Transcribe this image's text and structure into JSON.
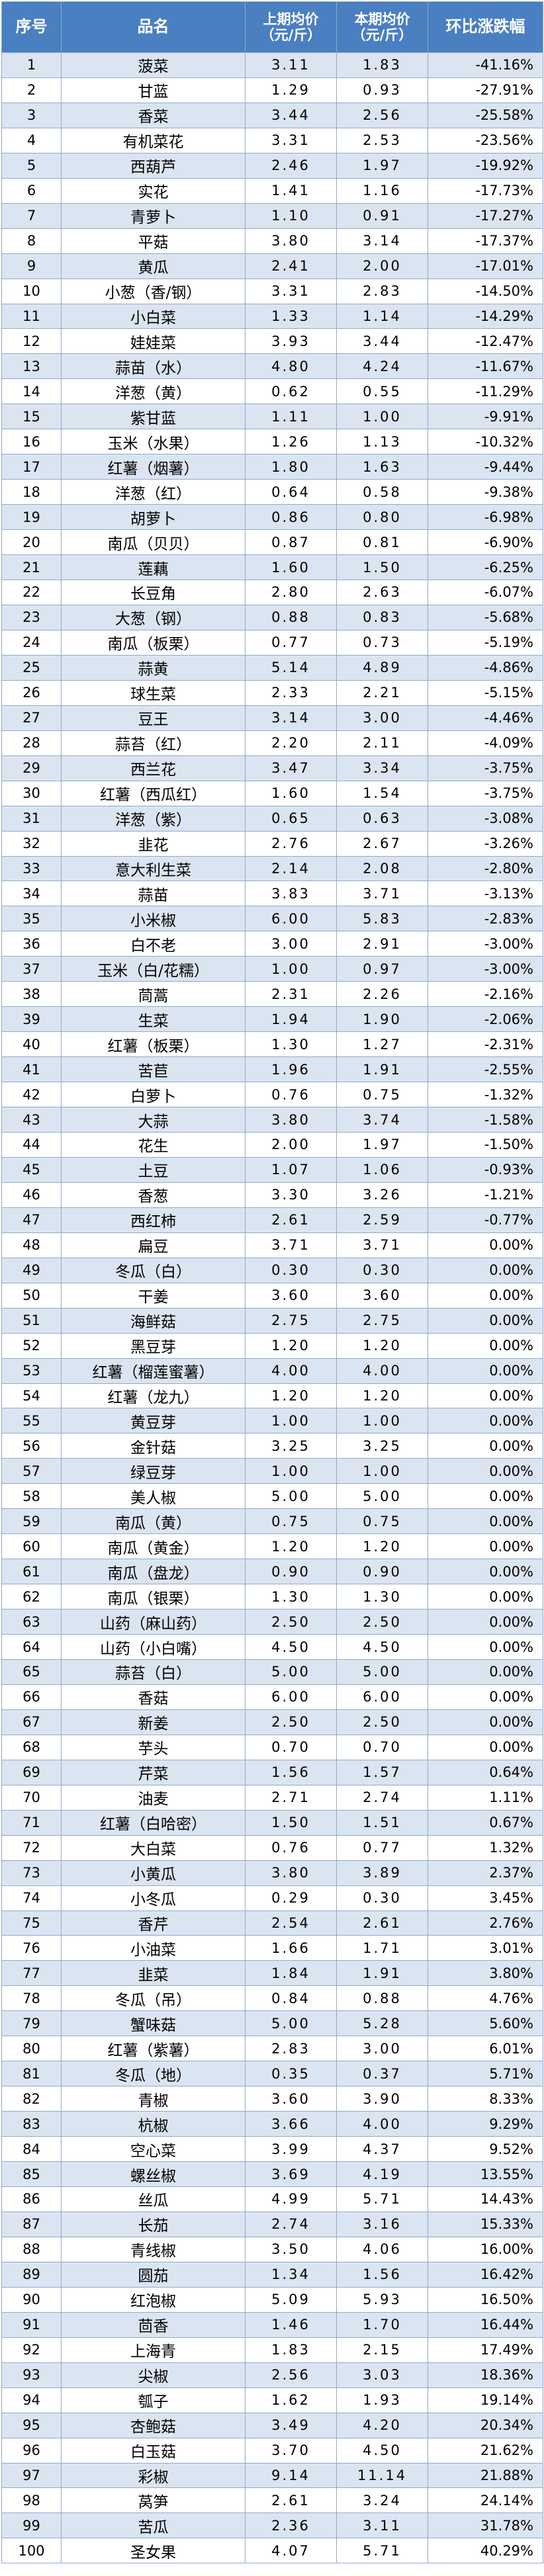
{
  "headers": {
    "no": "序号",
    "name": "品名",
    "prev_line1": "上期均价",
    "prev_line2": "（元/斤）",
    "cur_line1": "本期均价",
    "cur_line2": "（元/斤）",
    "change": "环比涨跌幅"
  },
  "rows": [
    {
      "no": "1",
      "name": "菠菜",
      "prev": "3.11",
      "cur": "1.83",
      "change": "-41.16%"
    },
    {
      "no": "2",
      "name": "甘蓝",
      "prev": "1.29",
      "cur": "0.93",
      "change": "-27.91%"
    },
    {
      "no": "3",
      "name": "香菜",
      "prev": "3.44",
      "cur": "2.56",
      "change": "-25.58%"
    },
    {
      "no": "4",
      "name": "有机菜花",
      "prev": "3.31",
      "cur": "2.53",
      "change": "-23.56%"
    },
    {
      "no": "5",
      "name": "西葫芦",
      "prev": "2.46",
      "cur": "1.97",
      "change": "-19.92%"
    },
    {
      "no": "6",
      "name": "实花",
      "prev": "1.41",
      "cur": "1.16",
      "change": "-17.73%"
    },
    {
      "no": "7",
      "name": "青萝卜",
      "prev": "1.10",
      "cur": "0.91",
      "change": "-17.27%"
    },
    {
      "no": "8",
      "name": "平菇",
      "prev": "3.80",
      "cur": "3.14",
      "change": "-17.37%"
    },
    {
      "no": "9",
      "name": "黄瓜",
      "prev": "2.41",
      "cur": "2.00",
      "change": "-17.01%"
    },
    {
      "no": "10",
      "name": "小葱（香/钢）",
      "prev": "3.31",
      "cur": "2.83",
      "change": "-14.50%"
    },
    {
      "no": "11",
      "name": "小白菜",
      "prev": "1.33",
      "cur": "1.14",
      "change": "-14.29%"
    },
    {
      "no": "12",
      "name": "娃娃菜",
      "prev": "3.93",
      "cur": "3.44",
      "change": "-12.47%"
    },
    {
      "no": "13",
      "name": "蒜苗（水）",
      "prev": "4.80",
      "cur": "4.24",
      "change": "-11.67%"
    },
    {
      "no": "14",
      "name": "洋葱（黄）",
      "prev": "0.62",
      "cur": "0.55",
      "change": "-11.29%"
    },
    {
      "no": "15",
      "name": "紫甘蓝",
      "prev": "1.11",
      "cur": "1.00",
      "change": "-9.91%"
    },
    {
      "no": "16",
      "name": "玉米（水果）",
      "prev": "1.26",
      "cur": "1.13",
      "change": "-10.32%"
    },
    {
      "no": "17",
      "name": "红薯（烟薯）",
      "prev": "1.80",
      "cur": "1.63",
      "change": "-9.44%"
    },
    {
      "no": "18",
      "name": "洋葱（红）",
      "prev": "0.64",
      "cur": "0.58",
      "change": "-9.38%"
    },
    {
      "no": "19",
      "name": "胡萝卜",
      "prev": "0.86",
      "cur": "0.80",
      "change": "-6.98%"
    },
    {
      "no": "20",
      "name": "南瓜（贝贝）",
      "prev": "0.87",
      "cur": "0.81",
      "change": "-6.90%"
    },
    {
      "no": "21",
      "name": "莲藕",
      "prev": "1.60",
      "cur": "1.50",
      "change": "-6.25%"
    },
    {
      "no": "22",
      "name": "长豆角",
      "prev": "2.80",
      "cur": "2.63",
      "change": "-6.07%"
    },
    {
      "no": "23",
      "name": "大葱（钢）",
      "prev": "0.88",
      "cur": "0.83",
      "change": "-5.68%"
    },
    {
      "no": "24",
      "name": "南瓜（板栗）",
      "prev": "0.77",
      "cur": "0.73",
      "change": "-5.19%"
    },
    {
      "no": "25",
      "name": "蒜黄",
      "prev": "5.14",
      "cur": "4.89",
      "change": "-4.86%"
    },
    {
      "no": "26",
      "name": "球生菜",
      "prev": "2.33",
      "cur": "2.21",
      "change": "-5.15%"
    },
    {
      "no": "27",
      "name": "豆王",
      "prev": "3.14",
      "cur": "3.00",
      "change": "-4.46%"
    },
    {
      "no": "28",
      "name": "蒜苔（红）",
      "prev": "2.20",
      "cur": "2.11",
      "change": "-4.09%"
    },
    {
      "no": "29",
      "name": "西兰花",
      "prev": "3.47",
      "cur": "3.34",
      "change": "-3.75%"
    },
    {
      "no": "30",
      "name": "红薯（西瓜红）",
      "prev": "1.60",
      "cur": "1.54",
      "change": "-3.75%"
    },
    {
      "no": "31",
      "name": "洋葱（紫）",
      "prev": "0.65",
      "cur": "0.63",
      "change": "-3.08%"
    },
    {
      "no": "32",
      "name": "韭花",
      "prev": "2.76",
      "cur": "2.67",
      "change": "-3.26%"
    },
    {
      "no": "33",
      "name": "意大利生菜",
      "prev": "2.14",
      "cur": "2.08",
      "change": "-2.80%"
    },
    {
      "no": "34",
      "name": "蒜苗",
      "prev": "3.83",
      "cur": "3.71",
      "change": "-3.13%"
    },
    {
      "no": "35",
      "name": "小米椒",
      "prev": "6.00",
      "cur": "5.83",
      "change": "-2.83%"
    },
    {
      "no": "36",
      "name": "白不老",
      "prev": "3.00",
      "cur": "2.91",
      "change": "-3.00%"
    },
    {
      "no": "37",
      "name": "玉米（白/花糯）",
      "prev": "1.00",
      "cur": "0.97",
      "change": "-3.00%"
    },
    {
      "no": "38",
      "name": "茼蒿",
      "prev": "2.31",
      "cur": "2.26",
      "change": "-2.16%"
    },
    {
      "no": "39",
      "name": "生菜",
      "prev": "1.94",
      "cur": "1.90",
      "change": "-2.06%"
    },
    {
      "no": "40",
      "name": "红薯（板栗）",
      "prev": "1.30",
      "cur": "1.27",
      "change": "-2.31%"
    },
    {
      "no": "41",
      "name": "苦苣",
      "prev": "1.96",
      "cur": "1.91",
      "change": "-2.55%"
    },
    {
      "no": "42",
      "name": "白萝卜",
      "prev": "0.76",
      "cur": "0.75",
      "change": "-1.32%"
    },
    {
      "no": "43",
      "name": "大蒜",
      "prev": "3.80",
      "cur": "3.74",
      "change": "-1.58%"
    },
    {
      "no": "44",
      "name": "花生",
      "prev": "2.00",
      "cur": "1.97",
      "change": "-1.50%"
    },
    {
      "no": "45",
      "name": "土豆",
      "prev": "1.07",
      "cur": "1.06",
      "change": "-0.93%"
    },
    {
      "no": "46",
      "name": "香葱",
      "prev": "3.30",
      "cur": "3.26",
      "change": "-1.21%"
    },
    {
      "no": "47",
      "name": "西红柿",
      "prev": "2.61",
      "cur": "2.59",
      "change": "-0.77%"
    },
    {
      "no": "48",
      "name": "扁豆",
      "prev": "3.71",
      "cur": "3.71",
      "change": "0.00%"
    },
    {
      "no": "49",
      "name": "冬瓜（白）",
      "prev": "0.30",
      "cur": "0.30",
      "change": "0.00%"
    },
    {
      "no": "50",
      "name": "干姜",
      "prev": "3.60",
      "cur": "3.60",
      "change": "0.00%"
    },
    {
      "no": "51",
      "name": "海鲜菇",
      "prev": "2.75",
      "cur": "2.75",
      "change": "0.00%"
    },
    {
      "no": "52",
      "name": "黑豆芽",
      "prev": "1.20",
      "cur": "1.20",
      "change": "0.00%"
    },
    {
      "no": "53",
      "name": "红薯（榴莲蜜薯）",
      "prev": "4.00",
      "cur": "4.00",
      "change": "0.00%"
    },
    {
      "no": "54",
      "name": "红薯（龙九）",
      "prev": "1.20",
      "cur": "1.20",
      "change": "0.00%"
    },
    {
      "no": "55",
      "name": "黄豆芽",
      "prev": "1.00",
      "cur": "1.00",
      "change": "0.00%"
    },
    {
      "no": "56",
      "name": "金针菇",
      "prev": "3.25",
      "cur": "3.25",
      "change": "0.00%"
    },
    {
      "no": "57",
      "name": "绿豆芽",
      "prev": "1.00",
      "cur": "1.00",
      "change": "0.00%"
    },
    {
      "no": "58",
      "name": "美人椒",
      "prev": "5.00",
      "cur": "5.00",
      "change": "0.00%"
    },
    {
      "no": "59",
      "name": "南瓜（黄）",
      "prev": "0.75",
      "cur": "0.75",
      "change": "0.00%"
    },
    {
      "no": "60",
      "name": "南瓜（黄金）",
      "prev": "1.20",
      "cur": "1.20",
      "change": "0.00%"
    },
    {
      "no": "61",
      "name": "南瓜（盘龙）",
      "prev": "0.90",
      "cur": "0.90",
      "change": "0.00%"
    },
    {
      "no": "62",
      "name": "南瓜（银栗）",
      "prev": "1.30",
      "cur": "1.30",
      "change": "0.00%"
    },
    {
      "no": "63",
      "name": "山药（麻山药）",
      "prev": "2.50",
      "cur": "2.50",
      "change": "0.00%"
    },
    {
      "no": "64",
      "name": "山药（小白嘴）",
      "prev": "4.50",
      "cur": "4.50",
      "change": "0.00%"
    },
    {
      "no": "65",
      "name": "蒜苔（白）",
      "prev": "5.00",
      "cur": "5.00",
      "change": "0.00%"
    },
    {
      "no": "66",
      "name": "香菇",
      "prev": "6.00",
      "cur": "6.00",
      "change": "0.00%"
    },
    {
      "no": "67",
      "name": "新姜",
      "prev": "2.50",
      "cur": "2.50",
      "change": "0.00%"
    },
    {
      "no": "68",
      "name": "芋头",
      "prev": "0.70",
      "cur": "0.70",
      "change": "0.00%"
    },
    {
      "no": "69",
      "name": "芹菜",
      "prev": "1.56",
      "cur": "1.57",
      "change": "0.64%"
    },
    {
      "no": "70",
      "name": "油麦",
      "prev": "2.71",
      "cur": "2.74",
      "change": "1.11%"
    },
    {
      "no": "71",
      "name": "红薯（白哈密）",
      "prev": "1.50",
      "cur": "1.51",
      "change": "0.67%"
    },
    {
      "no": "72",
      "name": "大白菜",
      "prev": "0.76",
      "cur": "0.77",
      "change": "1.32%"
    },
    {
      "no": "73",
      "name": "小黄瓜",
      "prev": "3.80",
      "cur": "3.89",
      "change": "2.37%"
    },
    {
      "no": "74",
      "name": "小冬瓜",
      "prev": "0.29",
      "cur": "0.30",
      "change": "3.45%"
    },
    {
      "no": "75",
      "name": "香芹",
      "prev": "2.54",
      "cur": "2.61",
      "change": "2.76%"
    },
    {
      "no": "76",
      "name": "小油菜",
      "prev": "1.66",
      "cur": "1.71",
      "change": "3.01%"
    },
    {
      "no": "77",
      "name": "韭菜",
      "prev": "1.84",
      "cur": "1.91",
      "change": "3.80%"
    },
    {
      "no": "78",
      "name": "冬瓜（吊）",
      "prev": "0.84",
      "cur": "0.88",
      "change": "4.76%"
    },
    {
      "no": "79",
      "name": "蟹味菇",
      "prev": "5.00",
      "cur": "5.28",
      "change": "5.60%"
    },
    {
      "no": "80",
      "name": "红薯（紫薯）",
      "prev": "2.83",
      "cur": "3.00",
      "change": "6.01%"
    },
    {
      "no": "81",
      "name": "冬瓜（地）",
      "prev": "0.35",
      "cur": "0.37",
      "change": "5.71%"
    },
    {
      "no": "82",
      "name": "青椒",
      "prev": "3.60",
      "cur": "3.90",
      "change": "8.33%"
    },
    {
      "no": "83",
      "name": "杭椒",
      "prev": "3.66",
      "cur": "4.00",
      "change": "9.29%"
    },
    {
      "no": "84",
      "name": "空心菜",
      "prev": "3.99",
      "cur": "4.37",
      "change": "9.52%"
    },
    {
      "no": "85",
      "name": "螺丝椒",
      "prev": "3.69",
      "cur": "4.19",
      "change": "13.55%"
    },
    {
      "no": "86",
      "name": "丝瓜",
      "prev": "4.99",
      "cur": "5.71",
      "change": "14.43%"
    },
    {
      "no": "87",
      "name": "长茄",
      "prev": "2.74",
      "cur": "3.16",
      "change": "15.33%"
    },
    {
      "no": "88",
      "name": "青线椒",
      "prev": "3.50",
      "cur": "4.06",
      "change": "16.00%"
    },
    {
      "no": "89",
      "name": "圆茄",
      "prev": "1.34",
      "cur": "1.56",
      "change": "16.42%"
    },
    {
      "no": "90",
      "name": "红泡椒",
      "prev": "5.09",
      "cur": "5.93",
      "change": "16.50%"
    },
    {
      "no": "91",
      "name": "茴香",
      "prev": "1.46",
      "cur": "1.70",
      "change": "16.44%"
    },
    {
      "no": "92",
      "name": "上海青",
      "prev": "1.83",
      "cur": "2.15",
      "change": "17.49%"
    },
    {
      "no": "93",
      "name": "尖椒",
      "prev": "2.56",
      "cur": "3.03",
      "change": "18.36%"
    },
    {
      "no": "94",
      "name": "瓠子",
      "prev": "1.62",
      "cur": "1.93",
      "change": "19.14%"
    },
    {
      "no": "95",
      "name": "杏鲍菇",
      "prev": "3.49",
      "cur": "4.20",
      "change": "20.34%"
    },
    {
      "no": "96",
      "name": "白玉菇",
      "prev": "3.70",
      "cur": "4.50",
      "change": "21.62%"
    },
    {
      "no": "97",
      "name": "彩椒",
      "prev": "9.14",
      "cur": "11.14",
      "change": "21.88%"
    },
    {
      "no": "98",
      "name": "莴笋",
      "prev": "2.61",
      "cur": "3.24",
      "change": "24.14%"
    },
    {
      "no": "99",
      "name": "苦瓜",
      "prev": "2.36",
      "cur": "3.11",
      "change": "31.78%"
    },
    {
      "no": "100",
      "name": "圣女果",
      "prev": "4.07",
      "cur": "5.71",
      "change": "40.29%"
    }
  ]
}
